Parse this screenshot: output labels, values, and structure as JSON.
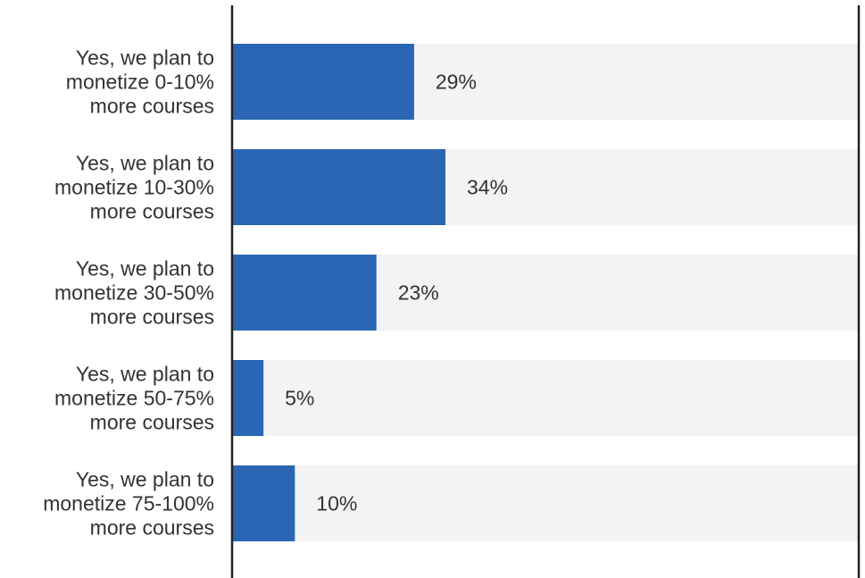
{
  "chart_data": {
    "type": "bar",
    "orientation": "horizontal",
    "categories": [
      [
        "Yes, we plan to",
        "monetize 0-10%",
        "more courses"
      ],
      [
        "Yes, we plan to",
        "monetize 10-30%",
        "more courses"
      ],
      [
        "Yes, we plan to",
        "monetize 30-50%",
        "more courses"
      ],
      [
        "Yes, we plan to",
        "monetize 50-75%",
        "more courses"
      ],
      [
        "Yes, we plan to",
        "monetize 75-100%",
        "more courses"
      ]
    ],
    "values": [
      29,
      34,
      23,
      5,
      10
    ],
    "value_labels": [
      "29%",
      "34%",
      "23%",
      "5%",
      "10%"
    ],
    "xlim": [
      0,
      100
    ],
    "grid": false,
    "colors": {
      "bar": "#2a66b3",
      "track": "#f2f3f5",
      "axis": "#222222",
      "text": "#333333"
    }
  }
}
